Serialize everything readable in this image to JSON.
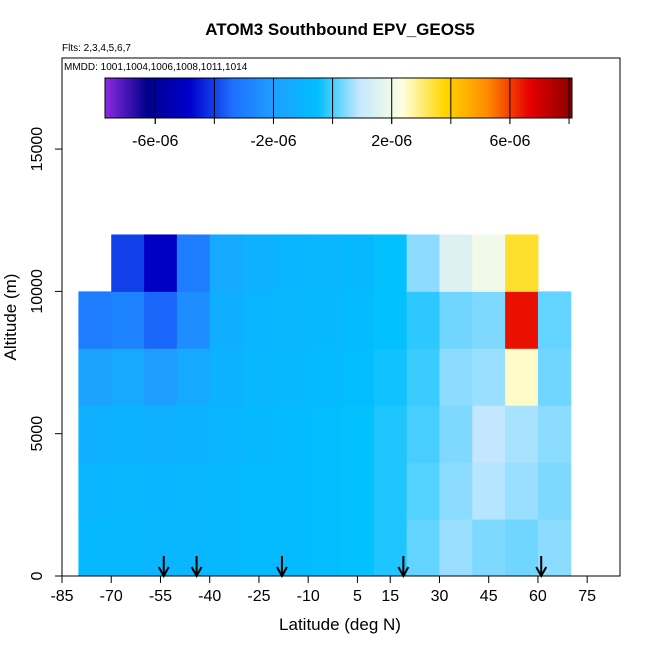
{
  "chart_data": {
    "type": "heatmap",
    "title": "ATOM3 Southbound EPV_GEOS5",
    "subtitle": "Flts: 2,3,4,5,6,7",
    "annotation": "MMDD: 1001,1004,1006,1008,1011,1014",
    "x_label": "Latitude (deg N)",
    "y_label": "Altitude (m)",
    "xlim": [
      -85,
      85
    ],
    "ylim": [
      0,
      18200
    ],
    "xticks": [
      -85,
      -70,
      -55,
      -40,
      -25,
      -10,
      5,
      15,
      30,
      45,
      60,
      75
    ],
    "yticks": [
      0,
      5000,
      10000,
      15000
    ],
    "x_edges": [
      -80,
      -70,
      -60,
      -50,
      -40,
      -30,
      -20,
      -10,
      0,
      10,
      20,
      30,
      40,
      50,
      60,
      70
    ],
    "y_edges": [
      0,
      2000,
      4000,
      6000,
      8000,
      10000,
      12000
    ],
    "values": [
      [
        -8e-07,
        -8e-07,
        -9e-07,
        -9e-07,
        -8e-07,
        -7e-07,
        -7e-07,
        -6e-07,
        -5e-07,
        -3e-07,
        2e-07,
        6e-07,
        4e-07,
        3e-07,
        5e-07
      ],
      [
        -1e-06,
        -9e-07,
        -1e-06,
        -9e-07,
        -8e-07,
        -7e-07,
        -7e-07,
        -6e-07,
        -5e-07,
        -3e-07,
        1e-07,
        5e-07,
        8e-07,
        6e-07,
        4e-07
      ],
      [
        -1.2e-06,
        -1.1e-06,
        -1.2e-06,
        -1.1e-06,
        -1e-06,
        -8e-07,
        -7e-07,
        -6e-07,
        -5e-07,
        -3e-07,
        0,
        4e-07,
        9e-07,
        7e-07,
        5e-07
      ],
      [
        -1.8e-06,
        -1.6e-06,
        -2e-06,
        -1.5e-06,
        -1.1e-06,
        -9e-07,
        -8e-07,
        -7e-07,
        -6e-07,
        -4e-07,
        -1e-07,
        5e-07,
        6e-07,
        2.5e-06,
        3e-07
      ],
      [
        -3e-06,
        -2.8e-06,
        -3.5e-06,
        -2.5e-06,
        -1.3e-06,
        -1e-06,
        -9e-07,
        -8e-07,
        -7e-07,
        -5e-07,
        -2e-07,
        3e-07,
        4e-07,
        6.5e-06,
        2e-07
      ],
      [
        null,
        -4e-06,
        -5e-06,
        -3e-06,
        -1.5e-06,
        -1.2e-06,
        -1e-06,
        -9e-07,
        -8e-07,
        -5e-07,
        5e-07,
        1.5e-06,
        2e-06,
        3.5e-06,
        null
      ]
    ],
    "clim": [
      -7.7e-06,
      8.1e-06
    ],
    "colorbar_ticks": [
      {
        "value": -6e-06,
        "label": "-6e-06"
      },
      {
        "value": -2e-06,
        "label": "-2e-06"
      },
      {
        "value": 2e-06,
        "label": "2e-06"
      },
      {
        "value": 6e-06,
        "label": "6e-06"
      }
    ],
    "colorbar_breaks": [
      -6e-06,
      -4e-06,
      -2e-06,
      0,
      2e-06,
      4e-06,
      6e-06,
      8e-06
    ],
    "colormap": [
      "#8a2be2",
      "#00008b",
      "#0000cd",
      "#1e6fff",
      "#1ea0ff",
      "#00bfff",
      "#c6e8ff",
      "#ffffe0",
      "#ffd700",
      "#ff8c00",
      "#e60000",
      "#8b0000"
    ],
    "arrows": [
      -54,
      -44,
      -18,
      19,
      61
    ]
  }
}
